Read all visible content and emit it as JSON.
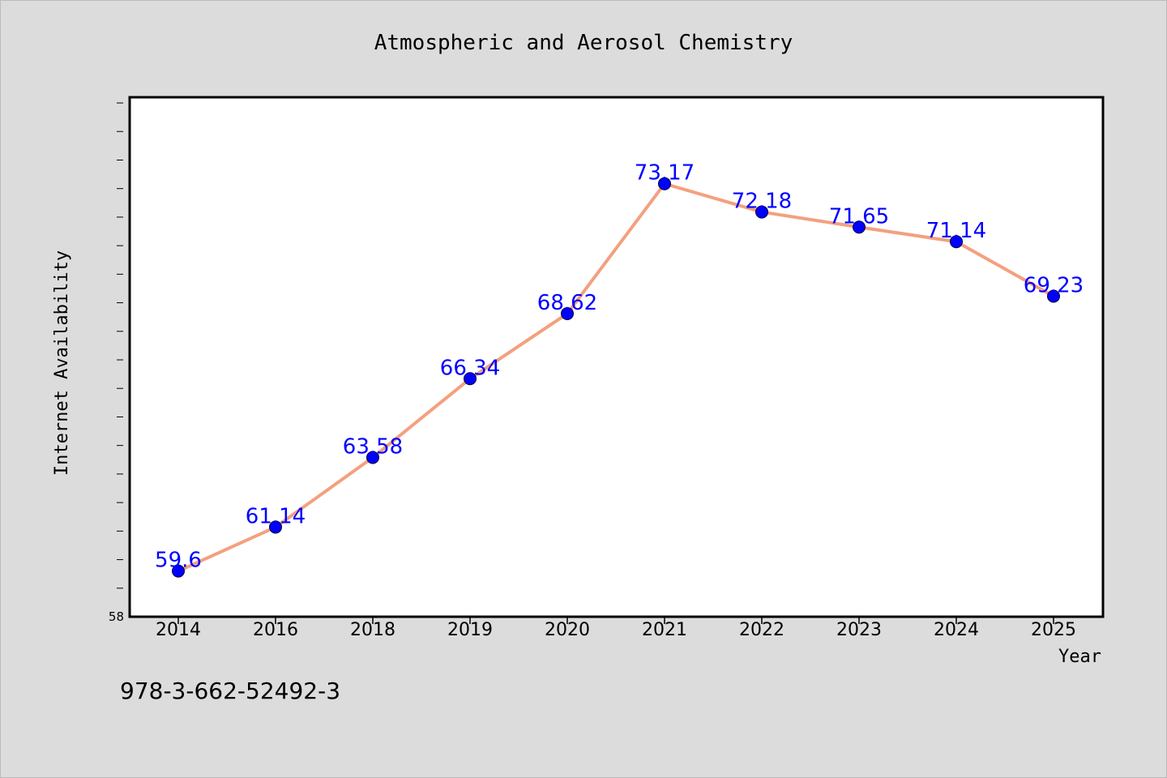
{
  "chart_data": {
    "type": "line",
    "title": "Atmospheric and Aerosol Chemistry",
    "xlabel": "Year",
    "ylabel": "Internet Availability",
    "categories": [
      "2014",
      "2016",
      "2018",
      "2019",
      "2020",
      "2021",
      "2022",
      "2023",
      "2024",
      "2025"
    ],
    "series": [
      {
        "values": [
          59.6,
          61.14,
          63.58,
          66.34,
          68.62,
          73.17,
          72.18,
          71.65,
          71.14,
          69.23
        ],
        "data_labels": [
          "59.6",
          "61.14",
          "63.58",
          "66.34",
          "68.62",
          "73.17",
          "72.18",
          "71.65",
          "71.14",
          "69.23"
        ]
      }
    ],
    "ylim": [
      58,
      76.2
    ],
    "ytick_labels": [
      "58"
    ],
    "grid": false,
    "colors": {
      "line": "#f4a07f",
      "marker": "#0000ff",
      "data_label": "#0000ff",
      "plot_bg": "#ffffff",
      "figure_bg": "#dcdcdc"
    }
  },
  "footer": {
    "isbn": "978-3-662-52492-3"
  }
}
